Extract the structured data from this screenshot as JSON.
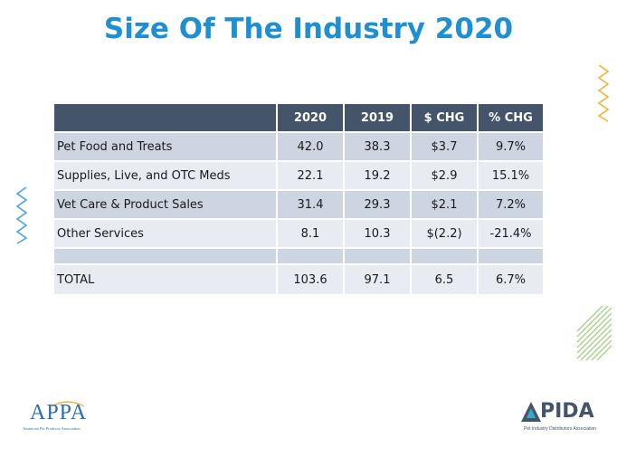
{
  "slide": {
    "title": "Size Of The Industry 2020"
  },
  "table": {
    "headers": [
      "",
      "2020",
      "2019",
      "$ CHG",
      "% CHG"
    ],
    "rows": [
      {
        "label": "Pet Food and Treats",
        "v2020": "42.0",
        "v2019": "38.3",
        "chg": "$3.7",
        "pct": "9.7%"
      },
      {
        "label": "Supplies, Live, and OTC Meds",
        "v2020": "22.1",
        "v2019": "19.2",
        "chg": "$2.9",
        "pct": "15.1%"
      },
      {
        "label": "Vet Care & Product Sales",
        "v2020": "31.4",
        "v2019": "29.3",
        "chg": "$2.1",
        "pct": "7.2%"
      },
      {
        "label": "Other Services",
        "v2020": "8.1",
        "v2019": "10.3",
        "chg": "$(2.2)",
        "pct": "-21.4%"
      }
    ],
    "total": {
      "label": "TOTAL",
      "v2020": "103.6",
      "v2019": "97.1",
      "chg": "6.5",
      "pct": "6.7%"
    }
  },
  "logos": {
    "appa": {
      "name": "APPA",
      "tagline": "American Pet Products Association"
    },
    "pida": {
      "name": "PIDA",
      "tagline": "Pet Industry Distributors Association"
    }
  },
  "colors": {
    "title": "#1d8fd2",
    "header_bg": "#44546a",
    "row_dark": "#cdd4e2",
    "row_light": "#e8ebf2",
    "zigzag_orange": "#f5b233",
    "zigzag_blue": "#4aa3df",
    "stripes_green": "#a9d18e"
  }
}
